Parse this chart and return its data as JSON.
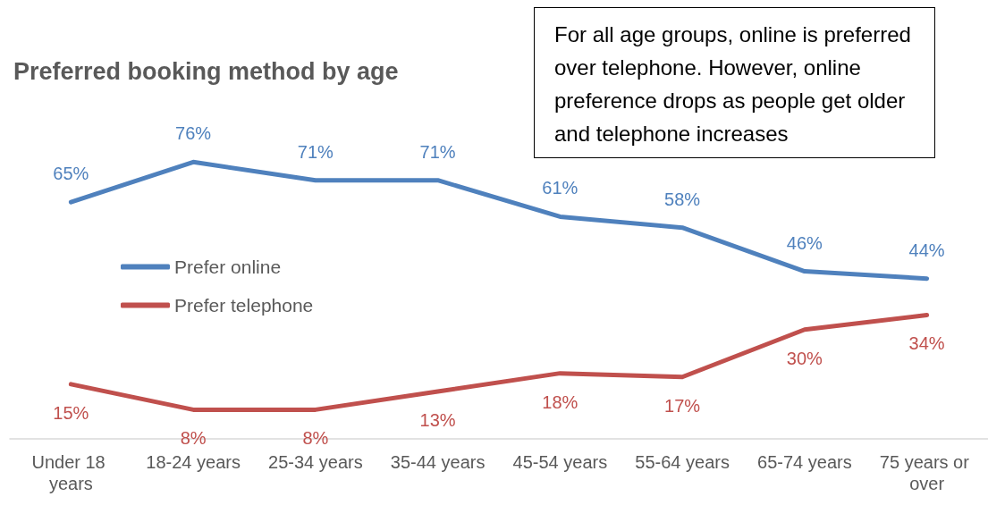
{
  "chart_data": {
    "type": "line",
    "title": "Preferred booking method by age",
    "categories": [
      "Under 18 years",
      "18-24 years",
      "25-34 years",
      "35-44 years",
      "45-54 years",
      "55-64 years",
      "65-74 years",
      "75 years or over"
    ],
    "series": [
      {
        "name": "Prefer online",
        "color": "#4f81bd",
        "values": [
          65,
          76,
          71,
          71,
          61,
          58,
          46,
          44
        ],
        "value_labels": [
          "65%",
          "76%",
          "71%",
          "71%",
          "61%",
          "58%",
          "46%",
          "44%"
        ]
      },
      {
        "name": "Prefer telephone",
        "color": "#c0504d",
        "values": [
          15,
          8,
          8,
          13,
          18,
          17,
          30,
          34
        ],
        "value_labels": [
          "15%",
          "8%",
          "8%",
          "13%",
          "18%",
          "17%",
          "30%",
          "34%"
        ]
      }
    ],
    "annotations": [
      "For all age groups, online is preferred over telephone. However, online preference drops as people get older and telephone increases"
    ],
    "legend": "left",
    "grid": false,
    "tick_labels": "x",
    "marker": "none",
    "line_style": "solid"
  }
}
